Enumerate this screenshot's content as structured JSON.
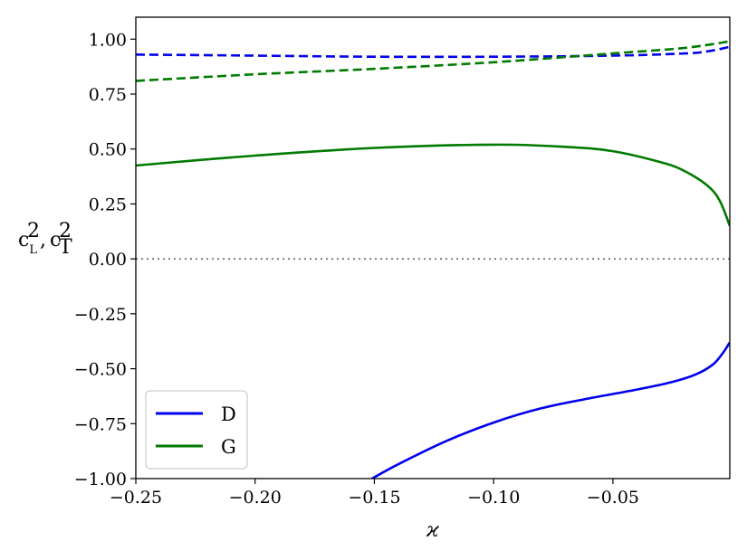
{
  "chart_data": {
    "type": "line",
    "xlabel": "ϰ",
    "ylabel": "c_L², c_T²",
    "xlim": [
      -0.25,
      -0.001
    ],
    "ylim": [
      -1.0,
      1.1
    ],
    "xticks": [
      -0.25,
      -0.2,
      -0.15,
      -0.1,
      -0.05
    ],
    "xtick_labels": [
      "−0.25",
      "−0.20",
      "−0.15",
      "−0.10",
      "−0.05"
    ],
    "yticks": [
      1.0,
      0.75,
      0.5,
      0.25,
      0.0,
      -0.25,
      -0.5,
      -0.75,
      -1.0
    ],
    "ytick_labels": [
      "1.00",
      "0.75",
      "0.50",
      "0.25",
      "0.00",
      "−0.25",
      "−0.50",
      "−0.75",
      "−1.00"
    ],
    "legend_position": "lower-left",
    "colors": {
      "D": "#0000ee",
      "G": "#007a00",
      "zero_line": "#808080"
    },
    "series": [
      {
        "name": "D",
        "style": "dashed",
        "x": [
          -0.25,
          -0.2,
          -0.15,
          -0.1,
          -0.05,
          -0.02,
          -0.01,
          -0.001
        ],
        "y": [
          0.93,
          0.925,
          0.92,
          0.92,
          0.925,
          0.935,
          0.945,
          0.965
        ]
      },
      {
        "name": "G",
        "style": "dashed",
        "x": [
          -0.25,
          -0.2,
          -0.15,
          -0.1,
          -0.05,
          -0.02,
          -0.001
        ],
        "y": [
          0.81,
          0.84,
          0.865,
          0.895,
          0.935,
          0.96,
          0.99
        ]
      },
      {
        "name": "G",
        "style": "solid",
        "x": [
          -0.25,
          -0.2,
          -0.15,
          -0.1,
          -0.07,
          -0.05,
          -0.03,
          -0.02,
          -0.01,
          -0.005,
          -0.001
        ],
        "y": [
          0.425,
          0.47,
          0.505,
          0.52,
          0.51,
          0.49,
          0.44,
          0.4,
          0.33,
          0.26,
          0.15
        ]
      },
      {
        "name": "D",
        "style": "solid",
        "x": [
          -0.151,
          -0.14,
          -0.12,
          -0.1,
          -0.08,
          -0.06,
          -0.04,
          -0.025,
          -0.015,
          -0.008,
          -0.004,
          -0.001
        ],
        "y": [
          -1.0,
          -0.935,
          -0.83,
          -0.745,
          -0.68,
          -0.635,
          -0.595,
          -0.56,
          -0.525,
          -0.48,
          -0.43,
          -0.38
        ]
      }
    ],
    "reference_line": {
      "y": 0.0,
      "style": "dotted"
    },
    "legend": [
      {
        "label": "D",
        "color": "#0000ee"
      },
      {
        "label": "G",
        "color": "#007a00"
      }
    ]
  }
}
